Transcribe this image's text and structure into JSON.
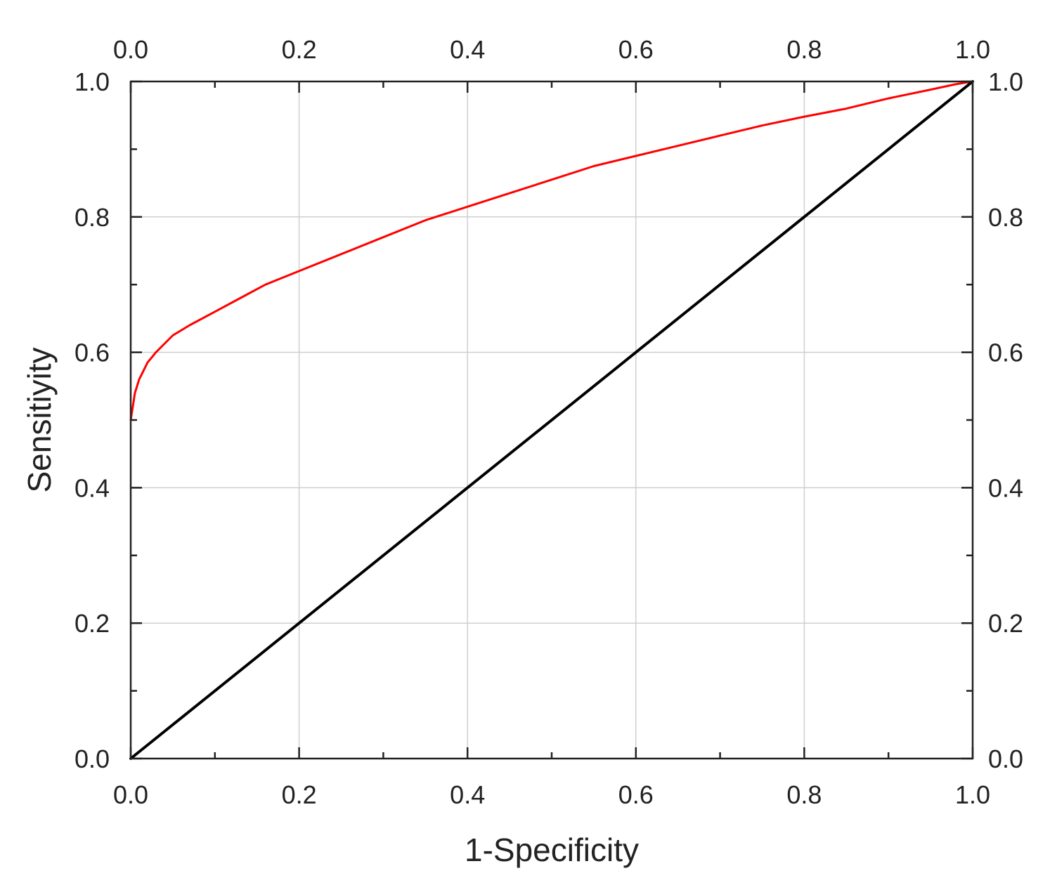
{
  "chart_data": {
    "type": "line",
    "title": "",
    "xlabel": "1-Specificity",
    "ylabel": "Sensitiyity",
    "xlim": [
      0,
      1
    ],
    "ylim": [
      0,
      1
    ],
    "grid": true,
    "mirror_axes": [
      "top",
      "right"
    ],
    "x_ticks": [
      "0.0",
      "0.2",
      "0.4",
      "0.6",
      "0.8",
      "1.0"
    ],
    "y_ticks": [
      "0.0",
      "0.2",
      "0.4",
      "0.6",
      "0.8",
      "1.0"
    ],
    "series": [
      {
        "color": "#ff0000",
        "x": [
          0.0,
          0.005,
          0.01,
          0.02,
          0.03,
          0.05,
          0.07,
          0.1,
          0.13,
          0.16,
          0.2,
          0.25,
          0.3,
          0.35,
          0.4,
          0.45,
          0.5,
          0.55,
          0.6,
          0.65,
          0.7,
          0.75,
          0.8,
          0.85,
          0.9,
          0.95,
          0.98,
          1.0
        ],
        "y": [
          0.5,
          0.54,
          0.56,
          0.585,
          0.6,
          0.625,
          0.64,
          0.66,
          0.68,
          0.7,
          0.72,
          0.745,
          0.77,
          0.795,
          0.815,
          0.835,
          0.855,
          0.875,
          0.89,
          0.905,
          0.92,
          0.935,
          0.948,
          0.96,
          0.975,
          0.988,
          0.996,
          1.0
        ]
      },
      {
        "color": "#000000",
        "x": [
          0.0,
          1.0
        ],
        "y": [
          0.0,
          1.0
        ]
      }
    ]
  }
}
